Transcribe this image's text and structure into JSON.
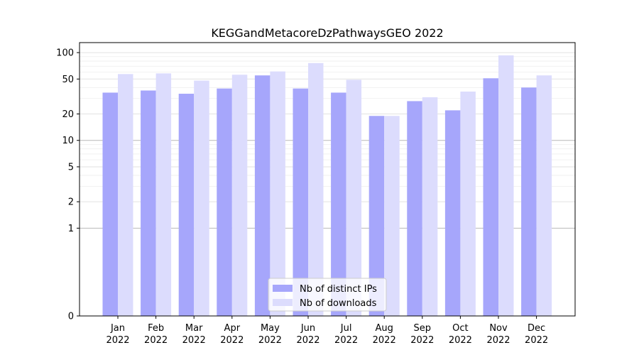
{
  "chart_data": {
    "type": "bar",
    "title": "KEGGandMetacoreDzPathwaysGEO 2022",
    "xlabel": "",
    "ylabel": "",
    "yscale": "symlog",
    "ylim": [
      0,
      130
    ],
    "yticks": [
      0,
      1,
      2,
      5,
      10,
      20,
      50,
      100
    ],
    "grid": true,
    "legend_position": "bottom-center",
    "categories": [
      [
        "Jan",
        "2022"
      ],
      [
        "Feb",
        "2022"
      ],
      [
        "Mar",
        "2022"
      ],
      [
        "Apr",
        "2022"
      ],
      [
        "May",
        "2022"
      ],
      [
        "Jun",
        "2022"
      ],
      [
        "Jul",
        "2022"
      ],
      [
        "Aug",
        "2022"
      ],
      [
        "Sep",
        "2022"
      ],
      [
        "Oct",
        "2022"
      ],
      [
        "Nov",
        "2022"
      ],
      [
        "Dec",
        "2022"
      ]
    ],
    "series": [
      {
        "name": "Nb of distinct IPs",
        "color": "#a6a6fb",
        "values": [
          35,
          37,
          34,
          39,
          55,
          39,
          35,
          19,
          28,
          22,
          51,
          40
        ]
      },
      {
        "name": "Nb of downloads",
        "color": "#dcdcfd",
        "values": [
          57,
          58,
          48,
          56,
          61,
          76,
          49,
          19,
          31,
          36,
          93,
          55
        ]
      }
    ]
  }
}
